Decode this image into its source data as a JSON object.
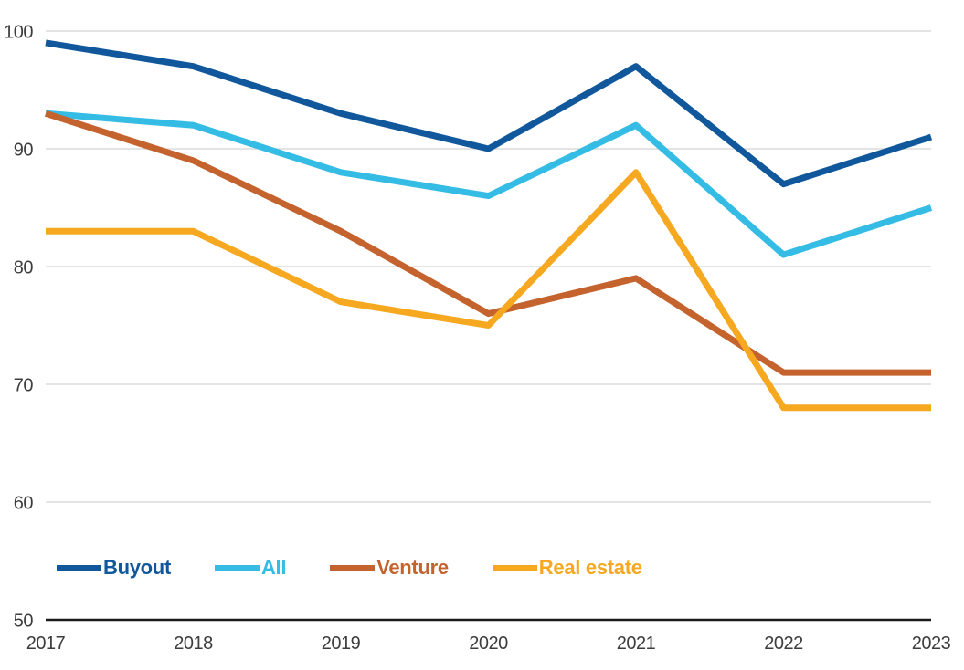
{
  "chart_data": {
    "type": "line",
    "title": "",
    "xlabel": "",
    "ylabel": "",
    "x": [
      "2017",
      "2018",
      "2019",
      "2020",
      "2021",
      "2022",
      "2023"
    ],
    "series": [
      {
        "name": "Buyout",
        "color": "#10589B",
        "values": [
          99,
          97,
          93,
          90,
          97,
          87,
          91
        ]
      },
      {
        "name": "All",
        "color": "#35BCE5",
        "values": [
          93,
          92,
          88,
          86,
          92,
          81,
          85
        ]
      },
      {
        "name": "Venture",
        "color": "#C4632D",
        "values": [
          93,
          89,
          83,
          76,
          79,
          71,
          71
        ]
      },
      {
        "name": "Real estate",
        "color": "#F6A821",
        "values": [
          83,
          83,
          77,
          75,
          88,
          68,
          68
        ]
      }
    ],
    "ylim": [
      50,
      100
    ],
    "yticks": [
      50,
      60,
      70,
      80,
      90,
      100
    ],
    "grid": "horizontal",
    "legend_position": "bottom-left"
  },
  "styles": {
    "background": "#FFFFFF",
    "grid_color": "#DBDBDB",
    "axis_color": "#1A1A1A",
    "tick_color": "#3D3D3D"
  }
}
